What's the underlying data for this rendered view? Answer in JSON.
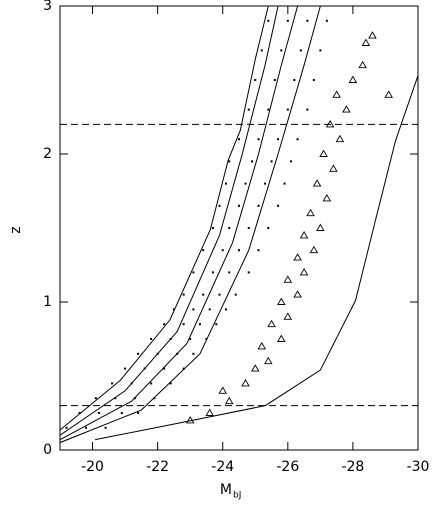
{
  "chart_data": {
    "type": "scatter",
    "ylabel": "z",
    "xlabel": "M",
    "xlabel_subscript": "bJ",
    "xlim": [
      -19,
      -30
    ],
    "ylim": [
      0,
      3
    ],
    "xticks": [
      -20,
      -22,
      -24,
      -26,
      -28,
      -30
    ],
    "yticks": [
      0,
      1,
      2,
      3
    ],
    "hlines": [
      0.3,
      2.2
    ],
    "series": [
      {
        "type": "line",
        "color": "#000000",
        "x": [
          -19,
          -20.85,
          -22.38,
          -23.62,
          -24.17,
          -24.54,
          -25.0,
          -25.4
        ],
        "values": [
          0.135,
          0.47,
          0.88,
          1.49,
          1.96,
          2.16,
          2.64,
          3.0
        ]
      },
      {
        "type": "line",
        "color": "#000000",
        "x": [
          -19,
          -21,
          -22.6,
          -23.9,
          -24.6,
          -25.3,
          -25.7
        ],
        "values": [
          0.1,
          0.4,
          0.8,
          1.45,
          2.0,
          2.6,
          3.0
        ]
      },
      {
        "type": "line",
        "color": "#000000",
        "x": [
          -19,
          -21.2,
          -22.9,
          -24.3,
          -25.1,
          -25.8,
          -26.3
        ],
        "values": [
          0.07,
          0.33,
          0.72,
          1.4,
          2.0,
          2.6,
          3.0
        ]
      },
      {
        "type": "line",
        "color": "#000000",
        "x": [
          -19,
          -21.5,
          -23.3,
          -24.8,
          -25.7,
          -26.5,
          -27.0
        ],
        "values": [
          0.05,
          0.27,
          0.65,
          1.35,
          2.0,
          2.6,
          3.0
        ]
      },
      {
        "type": "line",
        "color": "#000000",
        "x": [
          -20.08,
          -22.38,
          -25.31,
          -27.0,
          -28.08,
          -28.69,
          -29.31,
          -30.0
        ],
        "values": [
          0.07,
          0.17,
          0.3,
          0.54,
          1.01,
          1.55,
          2.09,
          2.53
        ]
      },
      {
        "type": "scatter",
        "marker": "dot",
        "color": "#000000",
        "x": [
          -19.2,
          -19.8,
          -20.4,
          -19.6,
          -20.2,
          -20.9,
          -21.4,
          -20.1,
          -20.7,
          -21.3,
          -21.9,
          -20.6,
          -21.2,
          -21.8,
          -22.4,
          -21.0,
          -21.6,
          -22.2,
          -22.8,
          -21.4,
          -22.0,
          -22.6,
          -23.1,
          -21.8,
          -22.4,
          -23.0,
          -23.5,
          -22.2,
          -22.8,
          -23.3,
          -23.8,
          -22.5,
          -23.1,
          -23.6,
          -24.1,
          -22.8,
          -23.4,
          -23.9,
          -24.4,
          -23.1,
          -23.7,
          -24.2,
          -24.8,
          -23.4,
          -24.0,
          -24.5,
          -25.1,
          -23.7,
          -24.2,
          -24.8,
          -25.4,
          -23.9,
          -24.5,
          -25.1,
          -25.7,
          -24.1,
          -24.7,
          -25.3,
          -25.9,
          -24.2,
          -24.9,
          -25.5,
          -26.1,
          -24.5,
          -25.1,
          -25.7,
          -26.3,
          -24.8,
          -25.4,
          -26.0,
          -26.6,
          -25.0,
          -25.6,
          -26.2,
          -26.8,
          -25.2,
          -25.8,
          -26.4,
          -27.0,
          -25.4,
          -26.0,
          -26.6,
          -27.2
        ],
        "values": [
          0.15,
          0.15,
          0.15,
          0.25,
          0.25,
          0.25,
          0.25,
          0.35,
          0.35,
          0.35,
          0.35,
          0.45,
          0.45,
          0.45,
          0.45,
          0.55,
          0.55,
          0.55,
          0.55,
          0.65,
          0.65,
          0.65,
          0.65,
          0.75,
          0.75,
          0.75,
          0.75,
          0.85,
          0.85,
          0.85,
          0.85,
          0.95,
          0.95,
          0.95,
          0.95,
          1.05,
          1.05,
          1.05,
          1.05,
          1.2,
          1.2,
          1.2,
          1.2,
          1.35,
          1.35,
          1.35,
          1.35,
          1.5,
          1.5,
          1.5,
          1.5,
          1.65,
          1.65,
          1.65,
          1.65,
          1.8,
          1.8,
          1.8,
          1.8,
          1.95,
          1.95,
          1.95,
          1.95,
          2.1,
          2.1,
          2.1,
          2.1,
          2.3,
          2.3,
          2.3,
          2.3,
          2.5,
          2.5,
          2.5,
          2.5,
          2.7,
          2.7,
          2.7,
          2.7,
          2.9,
          2.9,
          2.9,
          2.9
        ]
      },
      {
        "type": "scatter",
        "marker": "triangle",
        "color": "#000000",
        "x": [
          -23.0,
          -23.6,
          -24.2,
          -24.0,
          -24.7,
          -25.0,
          -25.4,
          -25.2,
          -25.8,
          -25.5,
          -26.0,
          -25.8,
          -26.3,
          -26.0,
          -26.5,
          -26.3,
          -26.8,
          -26.5,
          -27.0,
          -26.7,
          -27.2,
          -26.9,
          -27.4,
          -27.1,
          -27.6,
          -27.3,
          -27.8,
          -27.5,
          -28.0,
          -28.3,
          -28.6,
          -29.1,
          -28.4
        ],
        "values": [
          0.2,
          0.25,
          0.33,
          0.4,
          0.45,
          0.55,
          0.6,
          0.7,
          0.75,
          0.85,
          0.9,
          1.0,
          1.05,
          1.15,
          1.2,
          1.3,
          1.35,
          1.45,
          1.5,
          1.6,
          1.7,
          1.8,
          1.9,
          2.0,
          2.1,
          2.2,
          2.3,
          2.4,
          2.5,
          2.6,
          2.8,
          2.4,
          2.75
        ]
      }
    ]
  }
}
